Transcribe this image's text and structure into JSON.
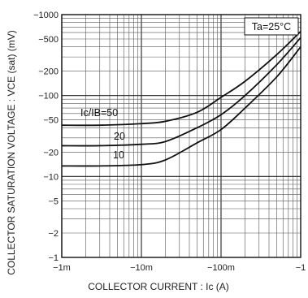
{
  "chart_data": {
    "type": "line",
    "x_scale": "log",
    "y_scale": "log",
    "xlabel": "COLLECTOR  CURRENT : Ic (A)",
    "ylabel": "COLLECTOR SATURATION VOLTAGE : VCE (sat) (mV)",
    "xlim": [
      "-1m",
      "-1"
    ],
    "ylim": [
      -1,
      -1000
    ],
    "x_tick_labels": [
      "−1m",
      "−10m",
      "−100m",
      "−1"
    ],
    "y_tick_labels": [
      "−1000",
      "−500",
      "−200",
      "−100",
      "−50",
      "−20",
      "−10",
      "−5",
      "−2",
      "−1"
    ],
    "grid": true,
    "condition_box": "Ta=25°C",
    "series": [
      {
        "name": "Ic/IB=50",
        "x": [
          -0.001,
          -0.003,
          -0.01,
          -0.02,
          -0.05,
          -0.1,
          -0.2,
          -0.5,
          -1
        ],
        "y": [
          -43,
          -43,
          -45,
          -48,
          -62,
          -95,
          -150,
          -320,
          -620
        ]
      },
      {
        "name": "20",
        "x": [
          -0.001,
          -0.003,
          -0.01,
          -0.02,
          -0.05,
          -0.1,
          -0.2,
          -0.5,
          -1
        ],
        "y": [
          -24,
          -24,
          -25,
          -27,
          -40,
          -58,
          -100,
          -240,
          -520
        ]
      },
      {
        "name": "10",
        "x": [
          -0.001,
          -0.003,
          -0.01,
          -0.02,
          -0.05,
          -0.1,
          -0.2,
          -0.5,
          -1
        ],
        "y": [
          -13.5,
          -13.5,
          -14,
          -16,
          -26,
          -38,
          -70,
          -170,
          -400
        ]
      }
    ]
  }
}
